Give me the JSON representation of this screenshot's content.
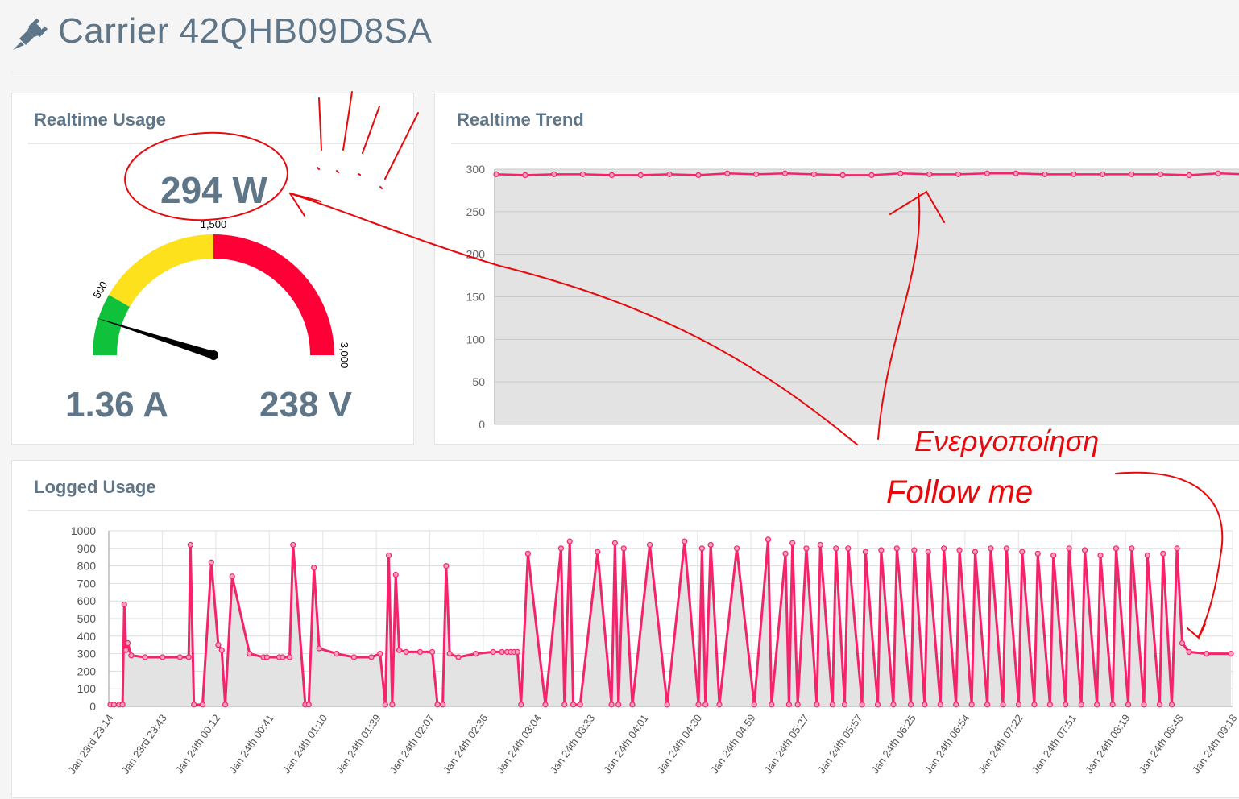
{
  "device": {
    "title": "Carrier 42QHB09D8SA",
    "icon": "plug-icon"
  },
  "colors": {
    "accent": "#f5226c",
    "text": "#5f7688",
    "gauge_green": "#10c13b",
    "gauge_yellow": "#fde11c",
    "gauge_red": "#ff0036",
    "annotation": "#e8090d"
  },
  "realtime_usage": {
    "title": "Realtime Usage",
    "power": "294 W",
    "current": "1.36 A",
    "voltage": "238 V",
    "gauge": {
      "min": 0,
      "max": 3000,
      "value": 294,
      "green_to": 500,
      "yellow_to": 1500,
      "labels": [
        "500",
        "1,500",
        "3,000"
      ]
    }
  },
  "realtime_trend": {
    "title": "Realtime Trend"
  },
  "logged_usage": {
    "title": "Logged Usage"
  },
  "annotations": {
    "line1": "Ενεργοποίηση",
    "line2": "Follow me"
  },
  "chart_data": [
    {
      "type": "area",
      "title": "Realtime Trend",
      "ylim": [
        0,
        300
      ],
      "yticks": [
        0,
        50,
        100,
        150,
        200,
        250,
        300
      ],
      "grid": true,
      "values": [
        294,
        293,
        294,
        294,
        293,
        293,
        294,
        293,
        295,
        294,
        295,
        294,
        293,
        293,
        295,
        294,
        294,
        295,
        295,
        294,
        294,
        294,
        294,
        294,
        293,
        295,
        294
      ]
    },
    {
      "type": "area",
      "title": "Logged Usage",
      "ylim": [
        0,
        1000
      ],
      "yticks": [
        0,
        100,
        200,
        300,
        400,
        500,
        600,
        700,
        800,
        900,
        1000
      ],
      "grid": true,
      "xlabels": [
        "Jan 23rd 23:14",
        "Jan 23rd 23:43",
        "Jan 24th 00:12",
        "Jan 24th 00:41",
        "Jan 24th 01:10",
        "Jan 24th 01:39",
        "Jan 24th 02:07",
        "Jan 24th 02:36",
        "Jan 24th 03:04",
        "Jan 24th 03:33",
        "Jan 24th 04:01",
        "Jan 24th 04:30",
        "Jan 24th 04:59",
        "Jan 24th 05:27",
        "Jan 24th 05:57",
        "Jan 24th 06:25",
        "Jan 24th 06:54",
        "Jan 24th 07:22",
        "Jan 24th 07:51",
        "Jan 24th 08:19",
        "Jan 24th 08:48",
        "Jan 24th 09:18"
      ],
      "x_minutes": [
        0,
        2,
        5,
        7,
        8,
        9,
        10,
        12,
        20,
        30,
        40,
        45,
        46,
        48,
        53,
        58,
        62,
        64,
        66,
        70,
        80,
        88,
        90,
        97,
        99,
        103,
        105,
        112,
        114,
        117,
        120,
        130,
        140,
        150,
        155,
        158,
        160,
        162,
        164,
        166,
        170,
        178,
        185,
        188,
        191,
        193,
        195,
        200,
        210,
        220,
        225,
        228,
        230,
        232,
        234,
        236,
        240,
        250,
        259,
        261,
        264,
        266,
        270,
        280,
        288,
        290,
        292,
        295,
        300,
        310,
        320,
        330,
        338,
        340,
        342,
        345,
        350,
        360,
        370,
        378,
        380,
        388,
        390,
        392,
        395,
        400,
        406,
        408,
        415,
        417,
        422,
        424,
        432,
        434,
        441,
        443,
        450,
        452,
        460,
        462,
        468,
        470,
        477,
        479,
        486,
        488,
        495,
        497,
        504,
        506,
        513,
        515,
        522,
        524,
        531,
        533,
        540,
        542,
        549,
        551,
        558,
        560,
        567,
        569,
        576,
        578,
        585,
        587,
        594,
        596,
        603,
        605,
        610,
        613,
        616,
        620,
        630,
        644
      ],
      "values": [
        10,
        10,
        10,
        10,
        580,
        320,
        360,
        290,
        280,
        280,
        280,
        280,
        920,
        10,
        10,
        820,
        350,
        320,
        10,
        740,
        300,
        280,
        280,
        280,
        280,
        280,
        920,
        10,
        10,
        790,
        330,
        300,
        280,
        280,
        300,
        10,
        860,
        10,
        750,
        320,
        310,
        310,
        310,
        10,
        10,
        800,
        300,
        280,
        300,
        310,
        310,
        310,
        310,
        310,
        310,
        10,
        870,
        10,
        900,
        10,
        940,
        10,
        10,
        880,
        10,
        930,
        10,
        900,
        10,
        920,
        10,
        940,
        10,
        900,
        10,
        920,
        10,
        900,
        10,
        950,
        10,
        870,
        10,
        930,
        10,
        900,
        10,
        920,
        10,
        900,
        10,
        900,
        10,
        880,
        10,
        890,
        10,
        900,
        10,
        890,
        10,
        880,
        10,
        900,
        10,
        890,
        10,
        880,
        10,
        900,
        10,
        900,
        10,
        880,
        10,
        870,
        10,
        860,
        10,
        900,
        10,
        890,
        10,
        860,
        10,
        900,
        10,
        900,
        10,
        860,
        10,
        870,
        10,
        900,
        360,
        310,
        300,
        300
      ]
    }
  ]
}
